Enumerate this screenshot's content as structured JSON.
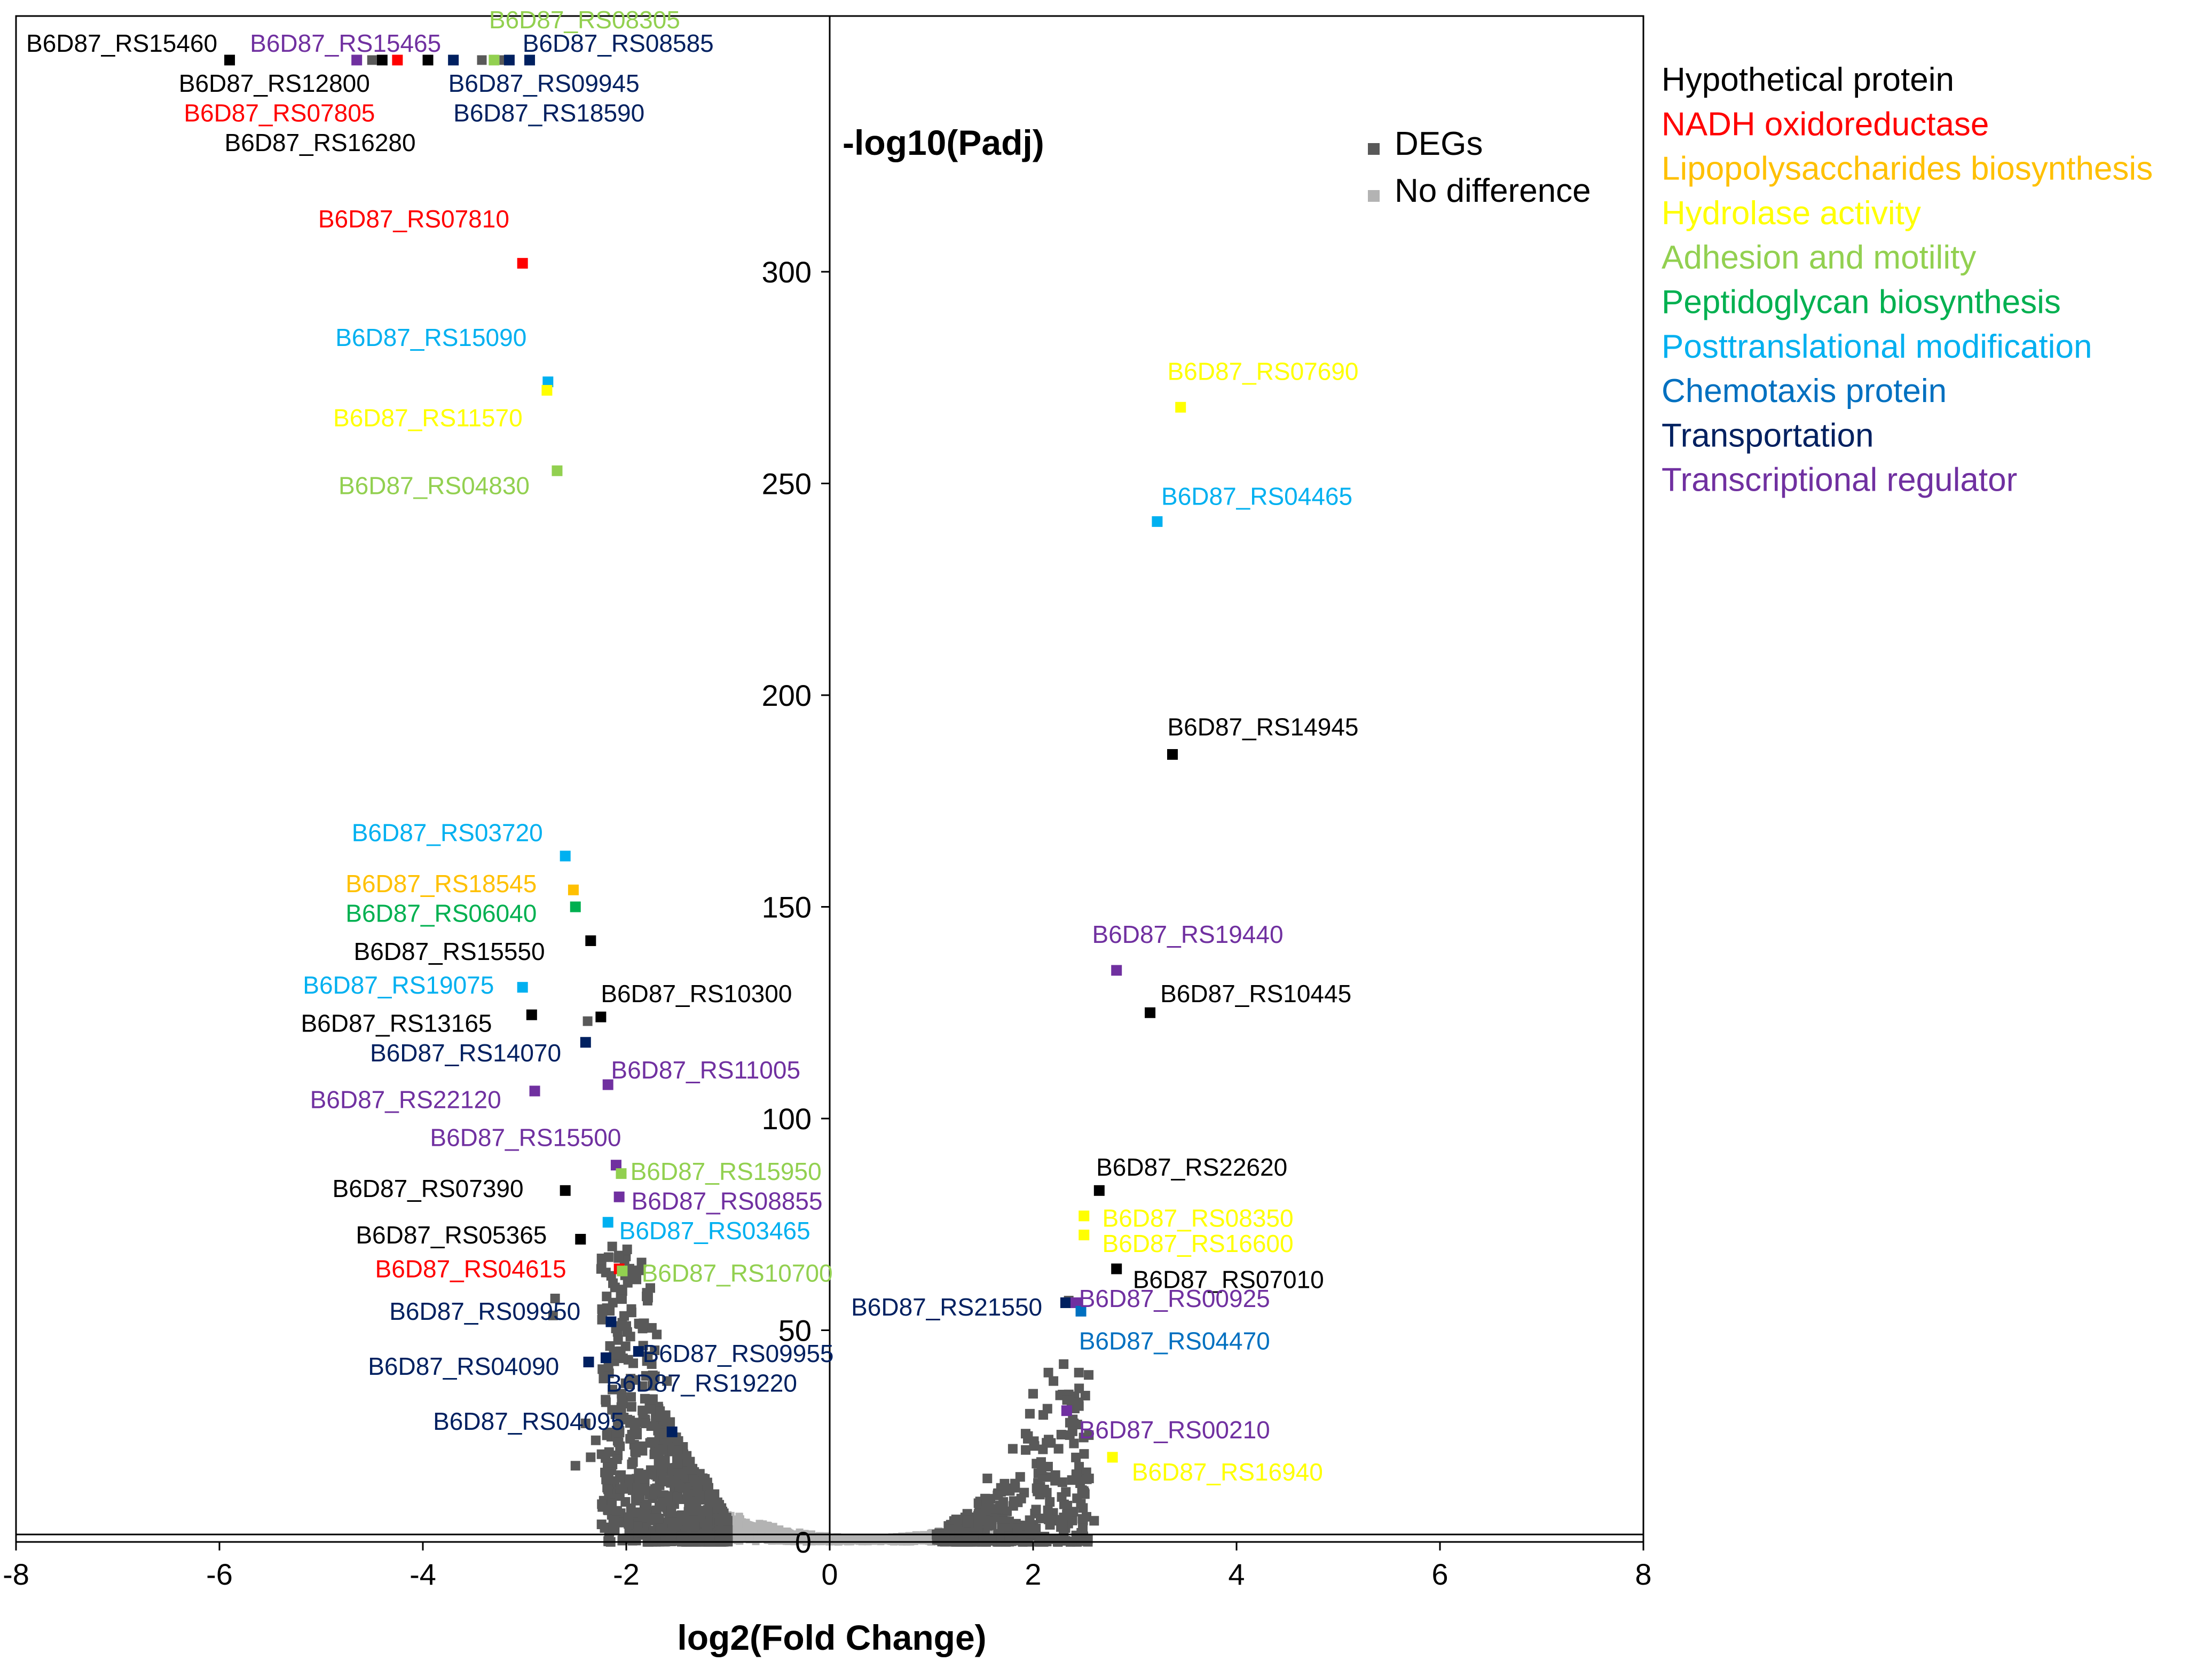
{
  "chart_data": {
    "type": "scatter",
    "xlabel": "log2(Fold Change)",
    "ylabel": "-log10(Padj)",
    "xlim": [
      -8,
      8
    ],
    "ylim": [
      0,
      365
    ],
    "x_ticks": [
      -8,
      -6,
      -4,
      -2,
      0,
      2,
      4,
      6,
      8
    ],
    "y_ticks": [
      0,
      50,
      100,
      150,
      200,
      250,
      300
    ],
    "legend": [
      {
        "name": "DEGs",
        "color": "#595959"
      },
      {
        "name": "No difference",
        "color": "#b3b3b3"
      }
    ],
    "categories": [
      {
        "name": "Hypothetical protein",
        "color": "#000000"
      },
      {
        "name": "NADH oxidoreductase",
        "color": "#ff0000"
      },
      {
        "name": "Lipopolysaccharides biosynthesis",
        "color": "#ffc000"
      },
      {
        "name": "Hydrolase activity",
        "color": "#ffff00"
      },
      {
        "name": "Adhesion and motility",
        "color": "#92d050"
      },
      {
        "name": "Peptidoglycan biosynthesis",
        "color": "#00b050"
      },
      {
        "name": "Posttranslational modification",
        "color": "#00b0f0"
      },
      {
        "name": "Chemotaxis protein",
        "color": "#0070c0"
      },
      {
        "name": "Transportation",
        "color": "#002060"
      },
      {
        "name": "Transcriptional regulator",
        "color": "#7030a0"
      }
    ],
    "labeled_genes": [
      {
        "label": "B6D87_RS15460",
        "cat": 0,
        "x": -5.9,
        "y": 350,
        "lx": -7.9,
        "ly": 354,
        "anchor": "start"
      },
      {
        "label": "B6D87_RS15465",
        "cat": 9,
        "x": -4.65,
        "y": 350,
        "lx": -5.7,
        "ly": 354,
        "anchor": "start"
      },
      {
        "label": "B6D87_RS08305",
        "cat": 4,
        "x": -3.3,
        "y": 350,
        "lx": -3.35,
        "ly": 359.5,
        "anchor": "start"
      },
      {
        "label": "B6D87_RS08585",
        "cat": 8,
        "x": -2.95,
        "y": 350,
        "lx": -3.02,
        "ly": 354,
        "anchor": "start"
      },
      {
        "label": "B6D87_RS12800",
        "cat": 0,
        "x": -4.4,
        "y": 350,
        "lx": -6.4,
        "ly": 344.5,
        "anchor": "start"
      },
      {
        "label": "B6D87_RS09945",
        "cat": 8,
        "x": -3.7,
        "y": 350,
        "lx": -3.75,
        "ly": 344.5,
        "anchor": "start"
      },
      {
        "label": "B6D87_RS07805",
        "cat": 1,
        "x": -4.25,
        "y": 350,
        "lx": -6.35,
        "ly": 337.5,
        "anchor": "start"
      },
      {
        "label": "B6D87_RS18590",
        "cat": 8,
        "x": -3.15,
        "y": 350,
        "lx": -3.7,
        "ly": 337.5,
        "anchor": "start"
      },
      {
        "label": "B6D87_RS16280",
        "cat": 0,
        "x": -3.95,
        "y": 350,
        "lx": -5.95,
        "ly": 330.5,
        "anchor": "start"
      },
      {
        "label": "B6D87_RS07810",
        "cat": 1,
        "x": -3.02,
        "y": 302,
        "lx": -3.15,
        "ly": 312.5,
        "anchor": "end"
      },
      {
        "label": "B6D87_RS15090",
        "cat": 6,
        "x": -2.77,
        "y": 274,
        "lx": -2.98,
        "ly": 284.5,
        "anchor": "end"
      },
      {
        "label": "B6D87_RS11570",
        "cat": 3,
        "x": -2.78,
        "y": 272,
        "lx": -3.02,
        "ly": 265.5,
        "anchor": "end"
      },
      {
        "label": "B6D87_RS04830",
        "cat": 4,
        "x": -2.68,
        "y": 253,
        "lx": -2.95,
        "ly": 249.5,
        "anchor": "end"
      },
      {
        "label": "B6D87_RS07690",
        "cat": 3,
        "x": 3.45,
        "y": 268,
        "lx": 3.32,
        "ly": 276.5,
        "anchor": "start"
      },
      {
        "label": "B6D87_RS04465",
        "cat": 6,
        "x": 3.22,
        "y": 241,
        "lx": 3.26,
        "ly": 247,
        "anchor": "start"
      },
      {
        "label": "B6D87_RS14945",
        "cat": 0,
        "x": 3.37,
        "y": 186,
        "lx": 3.32,
        "ly": 192.5,
        "anchor": "start"
      },
      {
        "label": "B6D87_RS03720",
        "cat": 6,
        "x": -2.6,
        "y": 162,
        "lx": -2.82,
        "ly": 167.5,
        "anchor": "end"
      },
      {
        "label": "B6D87_RS18545",
        "cat": 2,
        "x": -2.52,
        "y": 154,
        "lx": -2.88,
        "ly": 155.5,
        "anchor": "end"
      },
      {
        "label": "B6D87_RS06040",
        "cat": 5,
        "x": -2.5,
        "y": 150,
        "lx": -2.88,
        "ly": 148.5,
        "anchor": "end"
      },
      {
        "label": "B6D87_RS15550",
        "cat": 0,
        "x": -2.35,
        "y": 142,
        "lx": -2.8,
        "ly": 139.5,
        "anchor": "end"
      },
      {
        "label": "B6D87_RS19075",
        "cat": 6,
        "x": -3.02,
        "y": 131,
        "lx": -3.3,
        "ly": 131.5,
        "anchor": "end"
      },
      {
        "label": "B6D87_RS10300",
        "cat": 0,
        "x": -2.25,
        "y": 124,
        "lx": -2.25,
        "ly": 129.5,
        "anchor": "start"
      },
      {
        "label": "B6D87_RS13165",
        "cat": 0,
        "x": -2.93,
        "y": 124.5,
        "lx": -3.32,
        "ly": 122.5,
        "anchor": "end"
      },
      {
        "label": "B6D87_RS14070",
        "cat": 8,
        "x": -2.4,
        "y": 118,
        "lx": -2.64,
        "ly": 115.5,
        "anchor": "end"
      },
      {
        "label": "B6D87_RS11005",
        "cat": 9,
        "x": -2.18,
        "y": 108,
        "lx": -2.15,
        "ly": 111.5,
        "anchor": "start"
      },
      {
        "label": "B6D87_RS22120",
        "cat": 9,
        "x": -2.9,
        "y": 106.5,
        "lx": -3.23,
        "ly": 104.5,
        "anchor": "end"
      },
      {
        "label": "B6D87_RS15500",
        "cat": 9,
        "x": -2.1,
        "y": 89,
        "lx": -2.05,
        "ly": 95.5,
        "anchor": "end"
      },
      {
        "label": "B6D87_RS15950",
        "cat": 4,
        "x": -2.05,
        "y": 87,
        "lx": -1.96,
        "ly": 87.5,
        "anchor": "start"
      },
      {
        "label": "B6D87_RS07390",
        "cat": 0,
        "x": -2.6,
        "y": 83,
        "lx": -3.01,
        "ly": 83.5,
        "anchor": "end"
      },
      {
        "label": "B6D87_RS08855",
        "cat": 9,
        "x": -2.07,
        "y": 81.5,
        "lx": -1.95,
        "ly": 80.5,
        "anchor": "start"
      },
      {
        "label": "B6D87_RS03465",
        "cat": 6,
        "x": -2.18,
        "y": 75.5,
        "lx": -2.07,
        "ly": 73.5,
        "anchor": "start"
      },
      {
        "label": "B6D87_RS05365",
        "cat": 0,
        "x": -2.45,
        "y": 71.5,
        "lx": -2.78,
        "ly": 72.5,
        "anchor": "end"
      },
      {
        "label": "B6D87_RS04615",
        "cat": 1,
        "x": -2.07,
        "y": 64.5,
        "lx": -2.59,
        "ly": 64.5,
        "anchor": "end"
      },
      {
        "label": "B6D87_RS10700",
        "cat": 4,
        "x": -2.04,
        "y": 64,
        "lx": -1.85,
        "ly": 63.5,
        "anchor": "start"
      },
      {
        "label": "B6D87_RS09950",
        "cat": 8,
        "x": -2.15,
        "y": 52,
        "lx": -2.45,
        "ly": 54.5,
        "anchor": "end"
      },
      {
        "label": "B6D87_RS09955",
        "cat": 8,
        "x": -1.88,
        "y": 45,
        "lx": -1.84,
        "ly": 44.5,
        "anchor": "start"
      },
      {
        "label": "B6D87_RS04090",
        "cat": 8,
        "x": -2.37,
        "y": 42.5,
        "lx": -2.66,
        "ly": 41.5,
        "anchor": "end"
      },
      {
        "label": "B6D87_RS19220",
        "cat": 8,
        "x": -2.2,
        "y": 43.5,
        "lx": -2.2,
        "ly": 37.5,
        "anchor": "start"
      },
      {
        "label": "B6D87_RS04095",
        "cat": 8,
        "x": -1.55,
        "y": 26,
        "lx": -2.02,
        "ly": 28.5,
        "anchor": "end"
      },
      {
        "label": "B6D87_RS19440",
        "cat": 9,
        "x": 2.82,
        "y": 135,
        "lx": 2.58,
        "ly": 143.5,
        "anchor": "start"
      },
      {
        "label": "B6D87_RS10445",
        "cat": 0,
        "x": 3.15,
        "y": 125,
        "lx": 3.25,
        "ly": 129.5,
        "anchor": "start"
      },
      {
        "label": "B6D87_RS22620",
        "cat": 0,
        "x": 2.65,
        "y": 83,
        "lx": 2.62,
        "ly": 88.5,
        "anchor": "start"
      },
      {
        "label": "B6D87_RS08350",
        "cat": 3,
        "x": 2.5,
        "y": 77,
        "lx": 2.68,
        "ly": 76.5,
        "anchor": "start"
      },
      {
        "label": "B6D87_RS16600",
        "cat": 3,
        "x": 2.5,
        "y": 72.5,
        "lx": 2.68,
        "ly": 70.5,
        "anchor": "start"
      },
      {
        "label": "B6D87_RS07010",
        "cat": 0,
        "x": 2.82,
        "y": 64.5,
        "lx": 2.98,
        "ly": 62,
        "anchor": "start"
      },
      {
        "label": "B6D87_RS21550",
        "cat": 8,
        "x": 2.32,
        "y": 56.5,
        "lx": 2.09,
        "ly": 55.5,
        "anchor": "end"
      },
      {
        "label": "B6D87_RS00925",
        "cat": 9,
        "x": 2.42,
        "y": 56.5,
        "lx": 2.45,
        "ly": 57.5,
        "anchor": "start"
      },
      {
        "label": "B6D87_RS04470",
        "cat": 7,
        "x": 2.47,
        "y": 54.5,
        "lx": 2.45,
        "ly": 47.5,
        "anchor": "start"
      },
      {
        "label": "B6D87_RS00210",
        "cat": 9,
        "x": 2.33,
        "y": 31,
        "lx": 2.45,
        "ly": 26.5,
        "anchor": "start"
      },
      {
        "label": "B6D87_RS16940",
        "cat": 3,
        "x": 2.78,
        "y": 20,
        "lx": 2.97,
        "ly": 16.5,
        "anchor": "start"
      }
    ],
    "extra_degs_labeled_area": [
      {
        "x": -4.5,
        "y": 350
      },
      {
        "x": -3.42,
        "y": 350
      },
      {
        "x": -3.2,
        "y": 350
      },
      {
        "x": -2.38,
        "y": 123
      },
      {
        "x": -2.7,
        "y": 57.5
      },
      {
        "x": -2.72,
        "y": 53.5
      },
      {
        "x": 2.35,
        "y": 57
      }
    ]
  }
}
